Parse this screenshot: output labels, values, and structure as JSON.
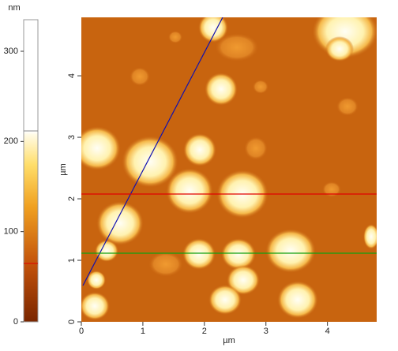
{
  "colorbar": {
    "unit": "nm",
    "range": [
      0,
      335
    ],
    "ticks": [
      0,
      100,
      200,
      300
    ]
  },
  "image": {
    "x_label": "µm",
    "y_label": "µm",
    "xlim": [
      0,
      4.8
    ],
    "ylim": [
      0,
      4.95
    ],
    "xticks": [
      0,
      1,
      2,
      3,
      4
    ],
    "yticks": [
      0,
      1,
      2,
      3,
      4
    ]
  }
}
